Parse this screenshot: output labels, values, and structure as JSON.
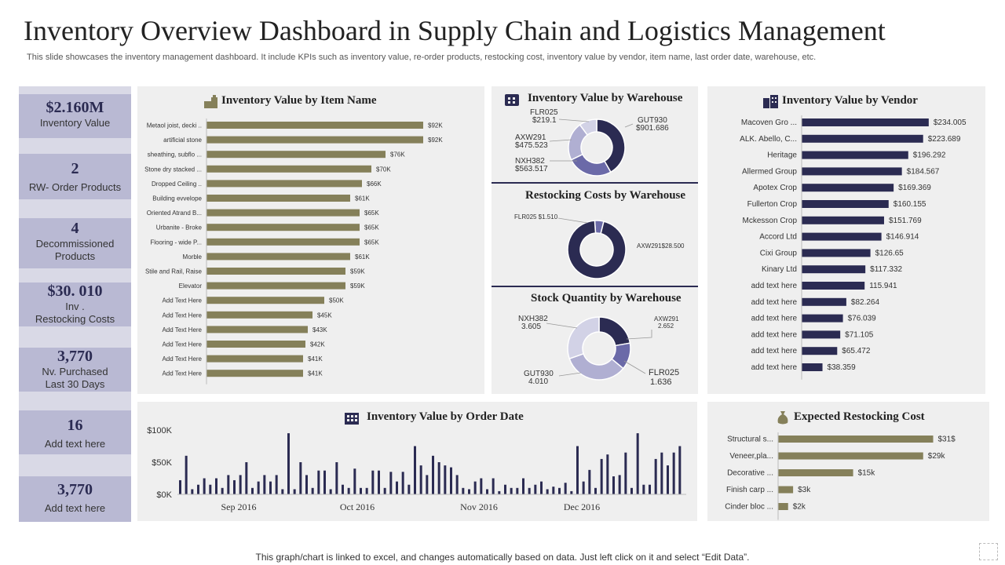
{
  "header": {
    "title": "Inventory Overview Dashboard in Supply Chain and Logistics Management",
    "subtitle": "This slide showcases the inventory management dashboard. It include KPIs such as inventory value, re-order products, restocking cost, inventory value by vendor, item name, last order date, warehouse,  etc."
  },
  "footer": "This graph/chart is linked to excel,  and changes automatically based on data. Just left click on it and select “Edit Data”.",
  "kpis": [
    {
      "value": "$2.160M",
      "label1": "Inventory  Value",
      "label2": ""
    },
    {
      "value": "2",
      "label1": "RW- Order Products",
      "label2": ""
    },
    {
      "value": "4",
      "label1": "Decommissioned",
      "label2": "Products"
    },
    {
      "value": "$30. 010",
      "label1": "Inv .",
      "label2": "Restocking Costs"
    },
    {
      "value": "3,770",
      "label1": "Nv. Purchased",
      "label2": "Last 30 Days"
    },
    {
      "value": "16",
      "label1": "Add text here",
      "label2": ""
    },
    {
      "value": "3,770",
      "label1": "Add text here",
      "label2": ""
    }
  ],
  "colors": {
    "olive": "#85805a",
    "navy": "#2b2b52",
    "mid": "#6b6aa8",
    "light": "#b0afd2",
    "pale": "#d2d2e6"
  },
  "titles": {
    "item": "Inventory Value by Item Name",
    "warehouse": "Inventory Value by Warehouse",
    "restock": "Restocking Costs by Warehouse",
    "stock": "Stock Quantity by Warehouse",
    "vendor": "Inventory Value by  Vendor",
    "orderdate": "Inventory Value by Order Date",
    "expected": "Expected Restocking Cost"
  },
  "chart_data": [
    {
      "id": "item",
      "type": "bar",
      "orientation": "horizontal",
      "title": "Inventory Value by Item Name",
      "categories": [
        "Metaol joist, decki ..",
        "artificial stone",
        "sheathing,  subflo ...",
        "Stone dry stacked ...",
        "Dropped Ceiling ..",
        "Building evvelope",
        "Oriented Atrand B...",
        "Urbanite - Broke",
        "Flooring - wide P...",
        "Morble",
        "Stile and Rail, Raise",
        "Elevator",
        "Add Text Here",
        "Add Text Here",
        "Add Text Here",
        "Add Text Here",
        "Add Text Here",
        "Add Text Here"
      ],
      "values": [
        92,
        92,
        76,
        70,
        66,
        61,
        65,
        65,
        65,
        61,
        59,
        59,
        50,
        45,
        43,
        42,
        41,
        41
      ],
      "labels": [
        "$92K",
        "$92K",
        "$76K",
        "$70K",
        "$66K",
        "$61K",
        "$65K",
        "$65K",
        "$65K",
        "$61K",
        "$59K",
        "$59K",
        "$50K",
        "$45K",
        "$43K",
        "$42K",
        "$41K",
        "$41K"
      ],
      "xlim": [
        0,
        100
      ]
    },
    {
      "id": "warehouse",
      "type": "pie",
      "title": "Inventory Value by Warehouse",
      "categories": [
        "GUT930",
        "NXH382",
        "AXW291",
        "FLR025"
      ],
      "values": [
        901.686,
        563.517,
        475.523,
        219.1
      ],
      "labels": [
        "GUT930",
        "NXH382",
        "AXW291",
        "FLR025"
      ],
      "value_labels": [
        "$901.686",
        "$563.517",
        "$475.523",
        "$219.1"
      ]
    },
    {
      "id": "restock",
      "type": "pie",
      "title": "Restocking Costs by Warehouse",
      "categories": [
        "FLR025",
        "AXW291"
      ],
      "values": [
        1.51,
        28.5
      ],
      "labels": [
        "FLR025 $1.510",
        "AXW291$28.500"
      ]
    },
    {
      "id": "stock",
      "type": "pie",
      "title": "Stock Quantity by Warehouse",
      "categories": [
        "AXW291",
        "FLR025",
        "GUT930",
        "NXH382"
      ],
      "values": [
        2.652,
        1.636,
        4.01,
        3.605
      ],
      "labels": [
        "AXW291",
        "FLR025",
        "GUT930",
        "NXH382"
      ],
      "value_labels": [
        "2.652",
        "1.636",
        "4.010",
        "3.605"
      ]
    },
    {
      "id": "vendor",
      "type": "bar",
      "orientation": "horizontal",
      "title": "Inventory Value by  Vendor",
      "categories": [
        "Macoven Gro ...",
        "ALK. Abello, C...",
        "Heritage",
        "Allermed Group",
        "Apotex Crop",
        "Fullerton Crop",
        "Mckesson Crop",
        "Accord Ltd",
        "Cixi Group",
        "Kinary  Ltd",
        "add text here",
        "add text here",
        "add text here",
        "add text here",
        "add text here",
        "add text here"
      ],
      "values": [
        234.005,
        223.689,
        196.292,
        184.567,
        169.369,
        160.155,
        151.769,
        146.914,
        126.65,
        117.332,
        115.941,
        82.264,
        76.039,
        71.105,
        65.472,
        38.359
      ],
      "labels": [
        "$234.005",
        "$223.689",
        "$196.292",
        "$184.567",
        "$169.369",
        "$160.155",
        "$151.769",
        "$146.914",
        "$126.65",
        "$117.332",
        "115.941",
        "$82.264",
        "$76.039",
        "$71.105",
        "$65.472",
        "$38.359"
      ],
      "xlim": [
        0,
        240
      ]
    },
    {
      "id": "orderdate",
      "type": "bar",
      "title": "Inventory Value by Order Date",
      "yticks": [
        "$0K",
        "$50K",
        "$100K"
      ],
      "ylim": [
        0,
        100
      ],
      "xticks": [
        "Sep 2016",
        "Oct 2016",
        "Nov 2016",
        "Dec 2016"
      ],
      "values": [
        22,
        60,
        8,
        15,
        25,
        15,
        25,
        10,
        30,
        22,
        30,
        50,
        10,
        20,
        30,
        20,
        30,
        8,
        95,
        8,
        50,
        30,
        10,
        37,
        37,
        8,
        50,
        15,
        10,
        40,
        10,
        10,
        37,
        37,
        10,
        35,
        20,
        35,
        15,
        75,
        45,
        30,
        60,
        50,
        45,
        42,
        30,
        10,
        8,
        20,
        25,
        8,
        25,
        5,
        15,
        10,
        10,
        25,
        10,
        15,
        20,
        8,
        12,
        10,
        18,
        5,
        75,
        20,
        38,
        10,
        55,
        62,
        28,
        30,
        65,
        10,
        95,
        15,
        15,
        55,
        65,
        45,
        65,
        75
      ],
      "xlabel": "",
      "ylabel": ""
    },
    {
      "id": "expected",
      "type": "bar",
      "orientation": "horizontal",
      "title": "Expected Restocking Cost",
      "categories": [
        "Structural s...",
        "Veneer,pla...",
        "Decorative ...",
        "Finish carp ...",
        "Cinder bloc ..."
      ],
      "values": [
        31,
        29,
        15,
        3,
        2
      ],
      "labels": [
        "$31$",
        "$29k",
        "$15k",
        "$3k",
        "$2k"
      ],
      "xlim": [
        0,
        35
      ]
    }
  ]
}
